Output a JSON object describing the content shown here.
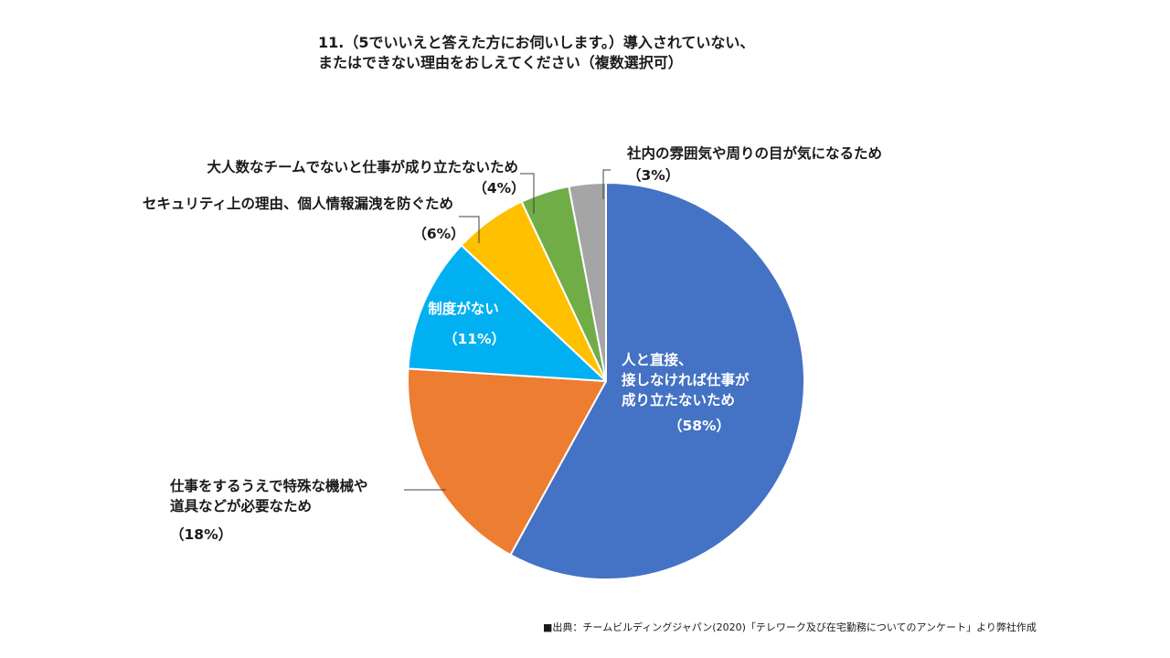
{
  "title": {
    "line1": "11.（5でいいえと答えた方にお伺いします。）導入されていない、",
    "line2": "またはできない理由をおしえてください（複数選択可）"
  },
  "chart_data": {
    "type": "pie",
    "title": "11.（5でいいえと答えた方にお伺いします。）導入されていない、またはできない理由をおしえてください（複数選択可）",
    "start": "12 o'clock",
    "direction": "clockwise",
    "slices": [
      {
        "label": "人と直接、接しなければ仕事が成り立たないため",
        "label_lines": [
          "人と直接、",
          "接しなければ仕事が",
          "成り立たないため"
        ],
        "value": 58,
        "pct_text": "（58%）",
        "color": "#4472C4",
        "label_color": "#ffffff"
      },
      {
        "label": "仕事をするうえで特殊な機械や道具などが必要なため",
        "label_lines": [
          "仕事をするうえで特殊な機械や",
          "道具などが必要なため"
        ],
        "value": 18,
        "pct_text": "（18%）",
        "color": "#ED7D31",
        "label_color": "#1a1a1a"
      },
      {
        "label": "制度がない",
        "label_lines": [
          "制度がない"
        ],
        "value": 11,
        "pct_text": "（11%）",
        "color": "#00B0F0",
        "label_color": "#ffffff"
      },
      {
        "label": "セキュリティ上の理由、個人情報漏洩を防ぐため",
        "label_lines": [
          "セキュリティ上の理由、個人情報漏洩を防ぐため"
        ],
        "value": 6,
        "pct_text": "（6%）",
        "color": "#FFC000",
        "label_color": "#1a1a1a"
      },
      {
        "label": "大人数なチームでないと仕事が成り立たないため",
        "label_lines": [
          "大人数なチームでないと仕事が成り立たないため"
        ],
        "value": 4,
        "pct_text": "（4%）",
        "color": "#70AD47",
        "label_color": "#1a1a1a"
      },
      {
        "label": "社内の雰囲気や周りの目が気になるため",
        "label_lines": [
          "社内の雰囲気や周りの目が気になるため"
        ],
        "value": 3,
        "pct_text": "（3%）",
        "color": "#A5A5A5",
        "label_color": "#1a1a1a"
      }
    ]
  },
  "source": "■出典：チームビルディングジャパン(2020)「テレワーク及び在宅勤務についてのアンケート」より弊社作成"
}
